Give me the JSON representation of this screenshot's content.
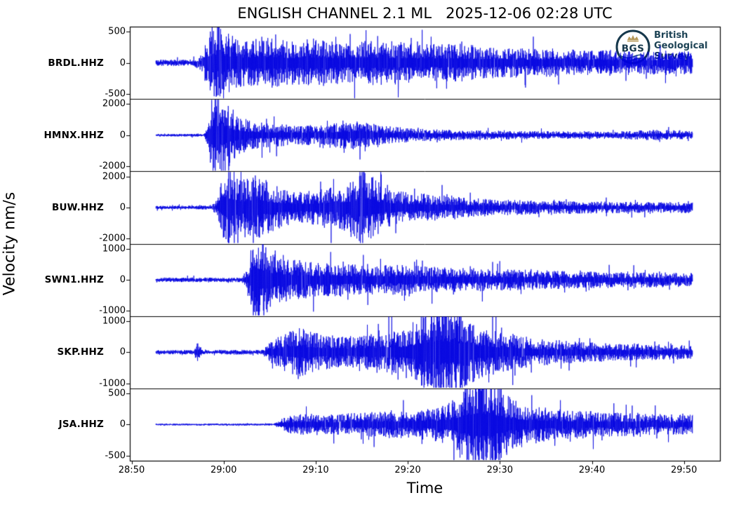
{
  "figure": {
    "title": "ENGLISH CHANNEL 2.1 ML   2025-12-06 02:28 UTC",
    "xlabel": "Time",
    "ylabel": "Velocity nm/s"
  },
  "logo": {
    "abbr": "BGS",
    "org_lines": [
      "British",
      "Geological",
      "Survey"
    ],
    "navy": "#16384c",
    "gold": "#b6995a",
    "teal": "#2e6278",
    "icon": "bgs-crown-circle-logo"
  },
  "chart_data": {
    "type": "line",
    "subtype": "seismogram-multitrace",
    "title": "ENGLISH CHANNEL 2.1 ML   2025-12-06 02:28 UTC",
    "xlabel": "Time",
    "ylabel": "Velocity nm/s",
    "x_ticks": [
      "28:50",
      "29:00",
      "29:10",
      "29:20",
      "29:30",
      "29:40",
      "29:50"
    ],
    "x_range_minutes": [
      "28:48.5",
      "29:52.6"
    ],
    "trace_start": "28:52.7",
    "trace_end": "29:51.0",
    "trace_color": "#0000e0",
    "grid": false,
    "legend": "none",
    "stations": [
      {
        "name": "BRDL.HHZ",
        "scale": 500,
        "ylim": [
          -560,
          560
        ],
        "yticks": [
          "500",
          "0",
          "-500"
        ],
        "envelope": [
          [
            0,
            40
          ],
          [
            0.07,
            45
          ],
          [
            0.085,
            110
          ],
          [
            0.1,
            420
          ],
          [
            0.115,
            530
          ],
          [
            0.14,
            380
          ],
          [
            0.17,
            300
          ],
          [
            0.2,
            360
          ],
          [
            0.25,
            290
          ],
          [
            0.3,
            330
          ],
          [
            0.35,
            270
          ],
          [
            0.4,
            310
          ],
          [
            0.45,
            290
          ],
          [
            0.5,
            250
          ],
          [
            0.55,
            270
          ],
          [
            0.6,
            230
          ],
          [
            0.65,
            210
          ],
          [
            0.7,
            185
          ],
          [
            0.75,
            195
          ],
          [
            0.8,
            165
          ],
          [
            0.85,
            175
          ],
          [
            0.9,
            155
          ],
          [
            0.95,
            165
          ],
          [
            1,
            150
          ]
        ]
      },
      {
        "name": "HMNX.HHZ",
        "scale": 2000,
        "ylim": [
          -2240,
          2240
        ],
        "yticks": [
          "2000",
          "0",
          "-2000"
        ],
        "envelope": [
          [
            0,
            70
          ],
          [
            0.09,
            80
          ],
          [
            0.098,
            600
          ],
          [
            0.105,
            2350
          ],
          [
            0.125,
            2300
          ],
          [
            0.15,
            1100
          ],
          [
            0.18,
            750
          ],
          [
            0.22,
            620
          ],
          [
            0.27,
            520
          ],
          [
            0.32,
            560
          ],
          [
            0.35,
            820
          ],
          [
            0.38,
            760
          ],
          [
            0.42,
            520
          ],
          [
            0.48,
            360
          ],
          [
            0.55,
            290
          ],
          [
            0.65,
            230
          ],
          [
            0.75,
            210
          ],
          [
            0.85,
            195
          ],
          [
            0.93,
            280
          ],
          [
            1,
            210
          ]
        ]
      },
      {
        "name": "BUW.HHZ",
        "scale": 2000,
        "ylim": [
          -2240,
          2240
        ],
        "yticks": [
          "2000",
          "0",
          "-2000"
        ],
        "envelope": [
          [
            0,
            90
          ],
          [
            0.1,
            110
          ],
          [
            0.115,
            420
          ],
          [
            0.125,
            1900
          ],
          [
            0.135,
            2350
          ],
          [
            0.16,
            1500
          ],
          [
            0.19,
            1800
          ],
          [
            0.22,
            1250
          ],
          [
            0.26,
            850
          ],
          [
            0.3,
            950
          ],
          [
            0.34,
            1150
          ],
          [
            0.37,
            1550
          ],
          [
            0.385,
            2350
          ],
          [
            0.4,
            1850
          ],
          [
            0.42,
            1250
          ],
          [
            0.46,
            850
          ],
          [
            0.52,
            720
          ],
          [
            0.58,
            520
          ],
          [
            0.65,
            420
          ],
          [
            0.75,
            360
          ],
          [
            0.85,
            310
          ],
          [
            0.95,
            290
          ],
          [
            1,
            300
          ]
        ]
      },
      {
        "name": "SWN1.HHZ",
        "scale": 1000,
        "ylim": [
          -1120,
          1120
        ],
        "yticks": [
          "1000",
          "0",
          "-1000"
        ],
        "envelope": [
          [
            0,
            60
          ],
          [
            0.16,
            65
          ],
          [
            0.172,
            320
          ],
          [
            0.182,
            1280
          ],
          [
            0.2,
            1020
          ],
          [
            0.23,
            720
          ],
          [
            0.27,
            520
          ],
          [
            0.32,
            460
          ],
          [
            0.37,
            410
          ],
          [
            0.42,
            390
          ],
          [
            0.46,
            430
          ],
          [
            0.5,
            360
          ],
          [
            0.55,
            330
          ],
          [
            0.6,
            310
          ],
          [
            0.65,
            290
          ],
          [
            0.72,
            260
          ],
          [
            0.8,
            230
          ],
          [
            0.9,
            210
          ],
          [
            1,
            185
          ]
        ]
      },
      {
        "name": "SKP.HHZ",
        "scale": 1000,
        "ylim": [
          -1120,
          1120
        ],
        "yticks": [
          "1000",
          "0",
          "-1000"
        ],
        "envelope": [
          [
            0,
            55
          ],
          [
            0.07,
            60
          ],
          [
            0.078,
            260
          ],
          [
            0.088,
            62
          ],
          [
            0.2,
            66
          ],
          [
            0.21,
            260
          ],
          [
            0.24,
            520
          ],
          [
            0.27,
            660
          ],
          [
            0.3,
            520
          ],
          [
            0.34,
            430
          ],
          [
            0.38,
            460
          ],
          [
            0.42,
            520
          ],
          [
            0.46,
            620
          ],
          [
            0.5,
            1120
          ],
          [
            0.53,
            1380
          ],
          [
            0.56,
            1220
          ],
          [
            0.6,
            720
          ],
          [
            0.65,
            520
          ],
          [
            0.7,
            390
          ],
          [
            0.78,
            290
          ],
          [
            0.88,
            225
          ],
          [
            1,
            185
          ]
        ]
      },
      {
        "name": "JSA.HHZ",
        "scale": 500,
        "ylim": [
          -560,
          560
        ],
        "yticks": [
          "500",
          "0",
          "-500"
        ],
        "envelope": [
          [
            0,
            12
          ],
          [
            0.22,
            15
          ],
          [
            0.245,
            120
          ],
          [
            0.28,
            145
          ],
          [
            0.33,
            135
          ],
          [
            0.38,
            165
          ],
          [
            0.43,
            175
          ],
          [
            0.48,
            185
          ],
          [
            0.52,
            225
          ],
          [
            0.55,
            310
          ],
          [
            0.57,
            510
          ],
          [
            0.6,
            720
          ],
          [
            0.63,
            610
          ],
          [
            0.66,
            360
          ],
          [
            0.7,
            260
          ],
          [
            0.76,
            205
          ],
          [
            0.84,
            165
          ],
          [
            0.92,
            145
          ],
          [
            1,
            130
          ]
        ]
      }
    ]
  }
}
